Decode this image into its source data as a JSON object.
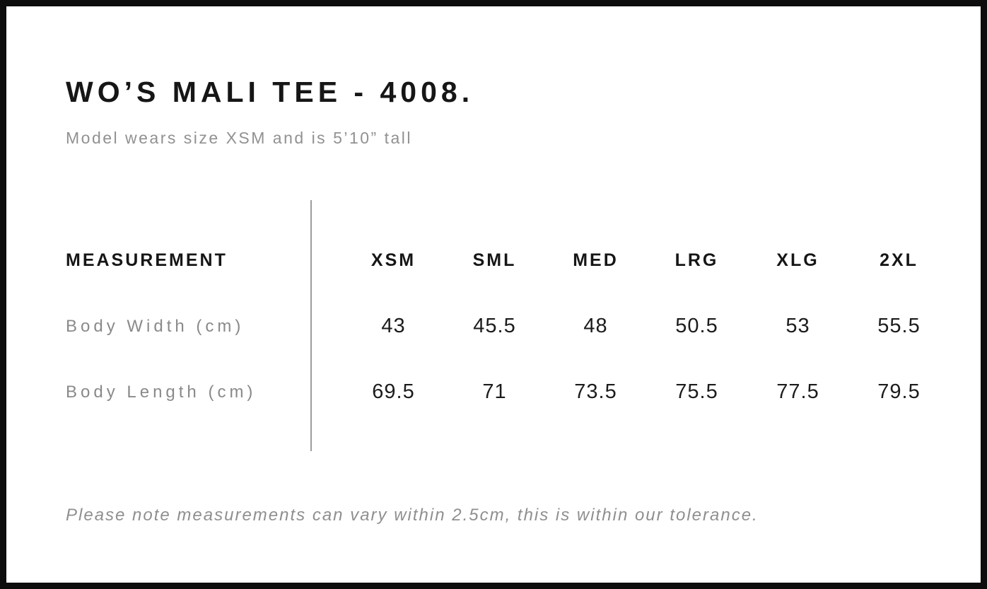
{
  "header": {
    "title": "WO’S MALI TEE - 4008.",
    "subtitle": "Model wears size XSM and is 5’10” tall"
  },
  "table": {
    "measurement_header": "MEASUREMENT",
    "size_headers": [
      "XSM",
      "SML",
      "MED",
      "LRG",
      "XLG",
      "2XL"
    ],
    "rows": [
      {
        "label": "Body Width (cm)",
        "values": [
          "43",
          "45.5",
          "48",
          "50.5",
          "53",
          "55.5"
        ]
      },
      {
        "label": "Body Length (cm)",
        "values": [
          "69.5",
          "71",
          "73.5",
          "75.5",
          "77.5",
          "79.5"
        ]
      }
    ]
  },
  "footer": {
    "note": "Please note measurements can vary within 2.5cm, this is within our tolerance."
  },
  "colors": {
    "background": "#ffffff",
    "border": "#0d0d0d",
    "text_primary": "#161616",
    "text_secondary": "#8f8f8f",
    "divider": "#9d9d9d"
  }
}
